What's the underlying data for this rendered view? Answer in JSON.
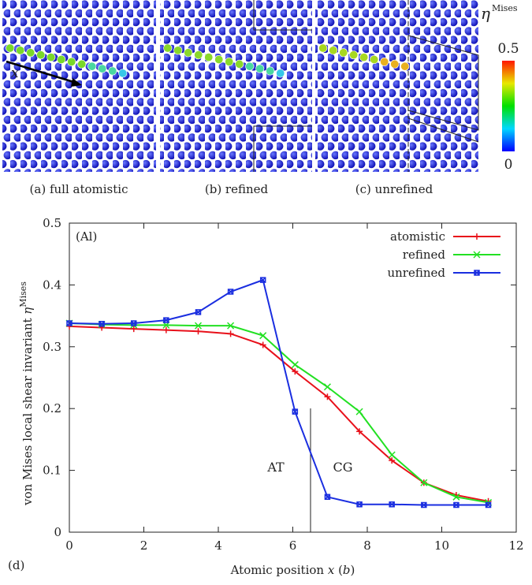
{
  "figure": {
    "captions": [
      "(a) full atomistic",
      "(b) refined",
      "(c) unrefined"
    ],
    "colorbar_symbol": "η",
    "colorbar_sup": "Mises",
    "colorbar_max": "0.5",
    "colorbar_min": "0",
    "direction_label": "x"
  },
  "chart_data": {
    "type": "line",
    "panel_label": "(d)",
    "material_label": "(Al)",
    "annotations": [
      "AT",
      "CG"
    ],
    "xlabel": [
      "Atomic position ",
      "x",
      " (",
      "b",
      ")"
    ],
    "ylabel": [
      "von Mises local shear invariant ",
      "η",
      "Mises"
    ],
    "x": [
      0,
      0.87,
      1.73,
      2.6,
      3.46,
      4.33,
      5.2,
      6.06,
      6.93,
      7.79,
      8.66,
      9.52,
      10.39,
      11.25
    ],
    "series": [
      {
        "name": "atomistic",
        "color": "#e8101a",
        "marker": "plus",
        "values": [
          0.333,
          0.331,
          0.329,
          0.327,
          0.325,
          0.321,
          0.303,
          0.26,
          0.219,
          0.163,
          0.116,
          0.08,
          0.06,
          0.05
        ]
      },
      {
        "name": "refined",
        "color": "#22e022",
        "marker": "cross",
        "values": [
          0.338,
          0.336,
          0.335,
          0.335,
          0.334,
          0.334,
          0.318,
          0.271,
          0.235,
          0.195,
          0.125,
          0.08,
          0.057,
          0.048
        ]
      },
      {
        "name": "unrefined",
        "color": "#1a2ee0",
        "marker": "square",
        "values": [
          0.338,
          0.337,
          0.338,
          0.343,
          0.356,
          0.389,
          0.408,
          0.195,
          0.057,
          0.045,
          0.045,
          0.044,
          0.044,
          0.044
        ]
      }
    ],
    "xlim": [
      0,
      12
    ],
    "xticks": [
      0,
      2,
      4,
      6,
      8,
      10,
      12
    ],
    "ylim": [
      0,
      0.5
    ],
    "yticks": [
      0,
      0.1,
      0.2,
      0.3,
      0.4,
      0.5
    ],
    "legend": "top-right"
  }
}
